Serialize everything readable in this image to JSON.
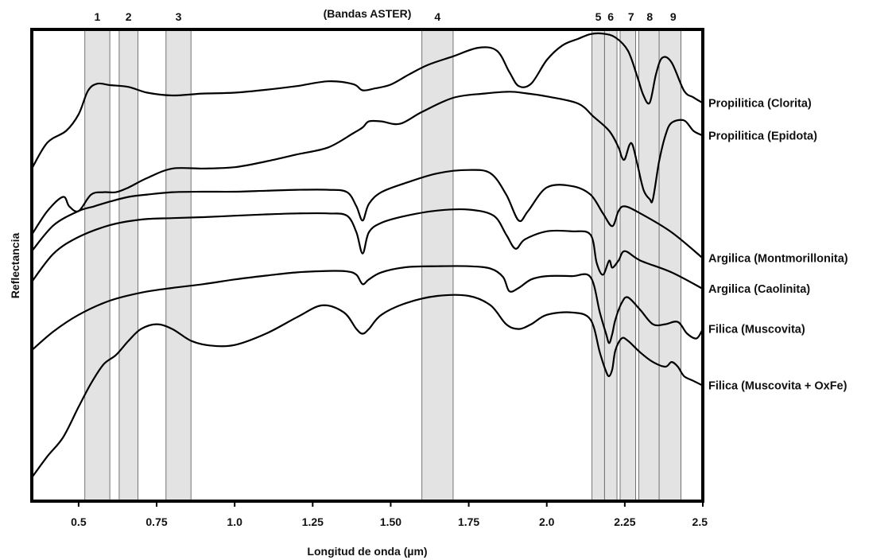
{
  "chart_data": {
    "type": "line",
    "title": "(Bandas ASTER)",
    "xlabel": "Longitud de onda (µm)",
    "ylabel": "Reflectancia",
    "xlim": [
      0.35,
      2.5
    ],
    "ylim": [
      0,
      100
    ],
    "grid": false,
    "x_ticks": [
      {
        "value": 0.5,
        "label": "0.5"
      },
      {
        "value": 0.75,
        "label": "0.75"
      },
      {
        "value": 1.0,
        "label": "1.0"
      },
      {
        "value": 1.25,
        "label": "1.25"
      },
      {
        "value": 1.5,
        "label": "1.50"
      },
      {
        "value": 1.75,
        "label": "1.75"
      },
      {
        "value": 2.0,
        "label": "2.0"
      },
      {
        "value": 2.25,
        "label": "2.25"
      },
      {
        "value": 2.5,
        "label": "2.5"
      }
    ],
    "bands": [
      {
        "label": "1",
        "start": 0.52,
        "end": 0.6
      },
      {
        "label": "2",
        "start": 0.63,
        "end": 0.69
      },
      {
        "label": "3",
        "start": 0.78,
        "end": 0.86
      },
      {
        "label": "4",
        "start": 1.6,
        "end": 1.7
      },
      {
        "label": "5",
        "start": 2.145,
        "end": 2.185
      },
      {
        "label": "6",
        "start": 2.185,
        "end": 2.225
      },
      {
        "label": "7",
        "start": 2.235,
        "end": 2.285
      },
      {
        "label": "8",
        "start": 2.295,
        "end": 2.365
      },
      {
        "label": "9",
        "start": 2.36,
        "end": 2.43
      }
    ],
    "series": [
      {
        "name": "Propilitica (Clorita)",
        "x": [
          0.35,
          0.4,
          0.46,
          0.5,
          0.53,
          0.56,
          0.6,
          0.66,
          0.72,
          0.8,
          0.9,
          1.0,
          1.1,
          1.2,
          1.3,
          1.38,
          1.41,
          1.45,
          1.5,
          1.56,
          1.62,
          1.7,
          1.78,
          1.84,
          1.88,
          1.91,
          1.95,
          2.0,
          2.05,
          2.1,
          2.14,
          2.18,
          2.22,
          2.26,
          2.29,
          2.31,
          2.33,
          2.35,
          2.37,
          2.4,
          2.44,
          2.47,
          2.5
        ],
        "y": [
          70.5,
          76,
          78.5,
          82,
          87,
          88.5,
          88.2,
          87.8,
          86.6,
          86.0,
          86.4,
          86.6,
          87.2,
          88.0,
          89.0,
          88.4,
          87.1,
          87.5,
          88.3,
          90.5,
          92.5,
          94.3,
          96.1,
          95.5,
          91,
          88,
          88.5,
          93.5,
          96.6,
          98,
          99,
          99.1,
          98.3,
          95.5,
          90,
          86,
          84.5,
          90.5,
          94,
          93,
          87,
          85.6,
          84.4
        ]
      },
      {
        "name": "Propilitica (Epidota)",
        "x": [
          0.35,
          0.4,
          0.45,
          0.47,
          0.5,
          0.54,
          0.58,
          0.62,
          0.66,
          0.72,
          0.8,
          0.9,
          1.0,
          1.1,
          1.2,
          1.3,
          1.38,
          1.41,
          1.43,
          1.47,
          1.53,
          1.6,
          1.7,
          1.8,
          1.88,
          1.93,
          2.0,
          2.1,
          2.15,
          2.2,
          2.23,
          2.24,
          2.25,
          2.265,
          2.275,
          2.29,
          2.31,
          2.33,
          2.34,
          2.36,
          2.38,
          2.4,
          2.44,
          2.47,
          2.5
        ],
        "y": [
          56.5,
          61.5,
          64.5,
          62.5,
          61.5,
          65,
          65.5,
          65.5,
          66.5,
          68.5,
          70.5,
          70.5,
          70.8,
          72,
          73.5,
          75,
          78,
          79.2,
          80.5,
          80.5,
          80,
          82.5,
          85.5,
          86.4,
          86.8,
          86.5,
          85.8,
          84.3,
          81.5,
          78.5,
          75,
          73,
          72.5,
          75.5,
          75.5,
          71.5,
          66,
          64,
          64,
          72,
          77.5,
          80.2,
          80.7,
          78.5,
          77.5
        ]
      },
      {
        "name": "Argilica (Montmorillonita)",
        "x": [
          0.35,
          0.42,
          0.5,
          0.55,
          0.6,
          0.66,
          0.72,
          0.8,
          0.9,
          1.0,
          1.1,
          1.2,
          1.3,
          1.36,
          1.39,
          1.41,
          1.43,
          1.47,
          1.55,
          1.65,
          1.75,
          1.82,
          1.87,
          1.91,
          1.94,
          2.0,
          2.08,
          2.14,
          2.18,
          2.21,
          2.23,
          2.25,
          2.3,
          2.4,
          2.5
        ],
        "y": [
          53,
          58.5,
          61.5,
          62.5,
          63.5,
          64.5,
          65,
          65.5,
          65.6,
          65.6,
          65.8,
          66,
          66,
          65.5,
          62.5,
          59.5,
          63,
          65.5,
          67.5,
          69.5,
          70.2,
          69.5,
          65,
          59.5,
          61.5,
          66.5,
          66.8,
          65,
          61,
          58.3,
          61.5,
          62.5,
          61,
          57,
          51.5
        ]
      },
      {
        "name": "Argilica (Caolinita)",
        "x": [
          0.35,
          0.42,
          0.5,
          0.6,
          0.7,
          0.8,
          0.9,
          1.0,
          1.1,
          1.2,
          1.3,
          1.36,
          1.39,
          1.41,
          1.43,
          1.47,
          1.55,
          1.65,
          1.75,
          1.83,
          1.87,
          1.9,
          1.93,
          2.0,
          2.08,
          2.14,
          2.16,
          2.18,
          2.2,
          2.21,
          2.23,
          2.25,
          2.3,
          2.4,
          2.5
        ],
        "y": [
          46.5,
          52.5,
          56,
          58.5,
          59.7,
          60,
          60.2,
          60.5,
          60.8,
          61.0,
          61.0,
          60.5,
          57,
          52.5,
          57,
          59,
          60.5,
          61.6,
          61.8,
          60.5,
          56.5,
          53.5,
          55.5,
          57.2,
          57.2,
          56.5,
          50.5,
          48,
          51,
          49.5,
          51,
          53,
          51,
          48.5,
          45
        ]
      },
      {
        "name": "Filica (Muscovita)",
        "x": [
          0.35,
          0.42,
          0.5,
          0.6,
          0.7,
          0.8,
          0.9,
          1.0,
          1.1,
          1.2,
          1.3,
          1.36,
          1.39,
          1.41,
          1.43,
          1.47,
          1.55,
          1.65,
          1.75,
          1.82,
          1.86,
          1.88,
          1.91,
          1.95,
          2.0,
          2.08,
          2.14,
          2.17,
          2.19,
          2.2,
          2.21,
          2.22,
          2.24,
          2.26,
          2.3,
          2.34,
          2.38,
          2.42,
          2.45,
          2.48,
          2.5
        ],
        "y": [
          32,
          36,
          39.5,
          42.5,
          44.2,
          45.2,
          46,
          47,
          47.8,
          48.5,
          48.8,
          48.7,
          48,
          46,
          47,
          48.5,
          49.6,
          49.8,
          49.8,
          49.3,
          47.5,
          44.5,
          45.2,
          47,
          47.7,
          47.7,
          47.5,
          40,
          35.5,
          33.5,
          35.5,
          38.5,
          42,
          43.2,
          40.5,
          37.5,
          37.5,
          38,
          35.5,
          34.5,
          36.5
        ]
      },
      {
        "name": "Filica (Muscovita + OxFe)",
        "x": [
          0.35,
          0.4,
          0.45,
          0.5,
          0.54,
          0.58,
          0.62,
          0.66,
          0.7,
          0.75,
          0.8,
          0.86,
          0.92,
          1.0,
          1.1,
          1.2,
          1.28,
          1.35,
          1.39,
          1.41,
          1.43,
          1.47,
          1.55,
          1.65,
          1.75,
          1.82,
          1.87,
          1.91,
          1.95,
          2.0,
          2.08,
          2.14,
          2.17,
          2.19,
          2.2,
          2.21,
          2.22,
          2.24,
          2.26,
          2.3,
          2.34,
          2.38,
          2.4,
          2.42,
          2.44,
          2.47,
          2.5
        ],
        "y": [
          5,
          9.5,
          13.5,
          20,
          25,
          29,
          31,
          34,
          36.5,
          37.5,
          36.5,
          34,
          33,
          33.1,
          35.5,
          39,
          41.5,
          40,
          36.5,
          35.5,
          36.5,
          39.5,
          42,
          43.5,
          43.5,
          41.5,
          37.5,
          36.5,
          37.5,
          39.5,
          40,
          38.5,
          31.5,
          27.5,
          26.5,
          28,
          32,
          34.5,
          34,
          31.5,
          29.5,
          28.5,
          29.5,
          28.5,
          26.5,
          25.5,
          24.5
        ]
      }
    ]
  }
}
